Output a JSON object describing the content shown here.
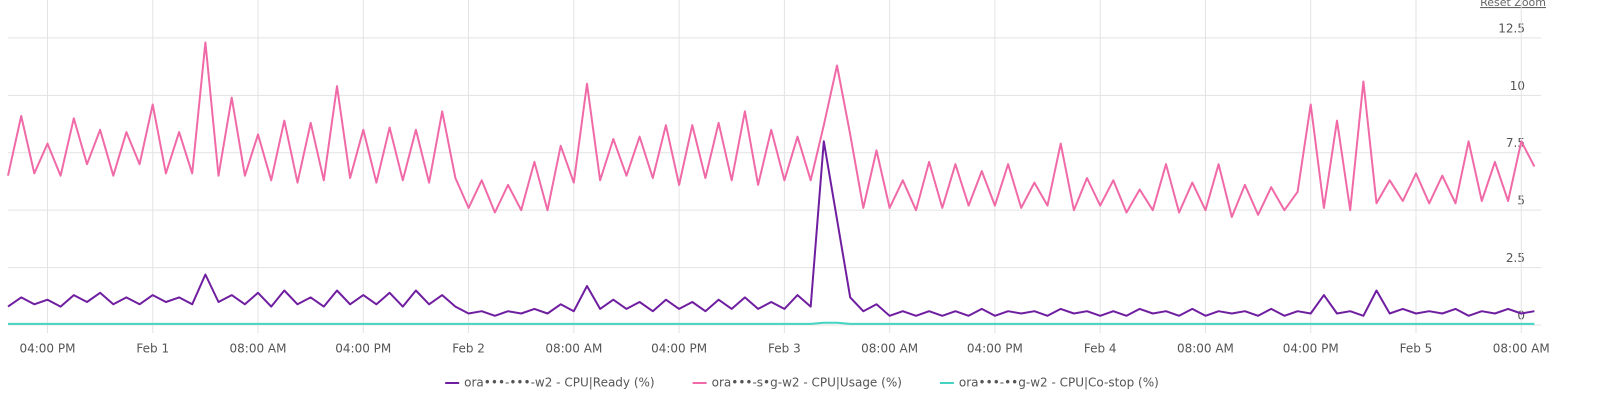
{
  "controls": {
    "reset_zoom": "Reset Zoom"
  },
  "chart_data": {
    "type": "line",
    "x": [
      0,
      1,
      2,
      3,
      4,
      5,
      6,
      7,
      8,
      9,
      10,
      11,
      12,
      13,
      14,
      15,
      16,
      17,
      18,
      19,
      20,
      21,
      22,
      23,
      24,
      25,
      26,
      27,
      28,
      29,
      30,
      31,
      32,
      33,
      34,
      35,
      36,
      37,
      38,
      39,
      40,
      41,
      42,
      43,
      44,
      45,
      46,
      47,
      48,
      49,
      50,
      51,
      52,
      53,
      54,
      55,
      56,
      57,
      58,
      59,
      60,
      61,
      62,
      63,
      64,
      65,
      66,
      67,
      68,
      69,
      70,
      71,
      72,
      73,
      74,
      75,
      76,
      77,
      78,
      79,
      80,
      81,
      82,
      83,
      84,
      85,
      86,
      87,
      88,
      89,
      90,
      91,
      92,
      93,
      94,
      95,
      96,
      97,
      98,
      99,
      100,
      101,
      102,
      103,
      104,
      105,
      106,
      107,
      108,
      109,
      110,
      111,
      112,
      113,
      114,
      115,
      116
    ],
    "xlim": [
      0,
      116.5
    ],
    "xticks": [
      {
        "value": 3,
        "label": "04:00 PM"
      },
      {
        "value": 11,
        "label": "Feb 1"
      },
      {
        "value": 19,
        "label": "08:00 AM"
      },
      {
        "value": 27,
        "label": "04:00 PM"
      },
      {
        "value": 35,
        "label": "Feb 2"
      },
      {
        "value": 43,
        "label": "08:00 AM"
      },
      {
        "value": 51,
        "label": "04:00 PM"
      },
      {
        "value": 59,
        "label": "Feb 3"
      },
      {
        "value": 67,
        "label": "08:00 AM"
      },
      {
        "value": 75,
        "label": "04:00 PM"
      },
      {
        "value": 83,
        "label": "Feb 4"
      },
      {
        "value": 91,
        "label": "08:00 AM"
      },
      {
        "value": 99,
        "label": "04:00 PM"
      },
      {
        "value": 107,
        "label": "Feb 5"
      },
      {
        "value": 115,
        "label": "08:00 AM"
      }
    ],
    "ylim": [
      0,
      14.15
    ],
    "yticks": [
      0,
      2.5,
      5,
      7.5,
      10,
      12.5
    ],
    "grid": true,
    "legend": "bottom",
    "series": [
      {
        "name": "ora•••-•••-w2 - CPU|Ready (%)",
        "color": "#6f1ea0",
        "values": [
          0.8,
          1.2,
          0.9,
          1.1,
          0.8,
          1.3,
          1.0,
          1.4,
          0.9,
          1.2,
          0.9,
          1.3,
          1.0,
          1.2,
          0.9,
          2.2,
          1.0,
          1.3,
          0.9,
          1.4,
          0.8,
          1.5,
          0.9,
          1.2,
          0.8,
          1.5,
          0.9,
          1.3,
          0.9,
          1.4,
          0.8,
          1.5,
          0.9,
          1.3,
          0.8,
          0.5,
          0.6,
          0.4,
          0.6,
          0.5,
          0.7,
          0.5,
          0.9,
          0.6,
          1.7,
          0.7,
          1.1,
          0.7,
          1.0,
          0.6,
          1.1,
          0.7,
          1.0,
          0.6,
          1.1,
          0.7,
          1.2,
          0.7,
          1.0,
          0.7,
          1.3,
          0.8,
          8.0,
          4.6,
          1.2,
          0.6,
          0.9,
          0.4,
          0.6,
          0.4,
          0.6,
          0.4,
          0.6,
          0.4,
          0.7,
          0.4,
          0.6,
          0.5,
          0.6,
          0.4,
          0.7,
          0.5,
          0.6,
          0.4,
          0.6,
          0.4,
          0.7,
          0.5,
          0.6,
          0.4,
          0.7,
          0.4,
          0.6,
          0.5,
          0.6,
          0.4,
          0.7,
          0.4,
          0.6,
          0.5,
          1.3,
          0.5,
          0.6,
          0.4,
          1.5,
          0.5,
          0.7,
          0.5,
          0.6,
          0.5,
          0.7,
          0.4,
          0.6,
          0.5,
          0.7,
          0.5,
          0.6
        ]
      },
      {
        "name": "ora•••-s•g-w2 - CPU|Usage (%)",
        "color": "#f06aa8",
        "values": [
          6.5,
          9.1,
          6.6,
          7.9,
          6.5,
          9.0,
          7.0,
          8.5,
          6.5,
          8.4,
          7.0,
          9.6,
          6.6,
          8.4,
          6.6,
          12.3,
          6.5,
          9.9,
          6.5,
          8.3,
          6.3,
          8.9,
          6.2,
          8.8,
          6.3,
          10.4,
          6.4,
          8.5,
          6.2,
          8.6,
          6.3,
          8.5,
          6.2,
          9.3,
          6.4,
          5.1,
          6.3,
          4.9,
          6.1,
          5.0,
          7.1,
          5.0,
          7.8,
          6.2,
          10.5,
          6.3,
          8.1,
          6.5,
          8.2,
          6.4,
          8.7,
          6.1,
          8.7,
          6.4,
          8.8,
          6.3,
          9.3,
          6.1,
          8.5,
          6.3,
          8.2,
          6.3,
          8.7,
          11.3,
          8.3,
          5.1,
          7.6,
          5.1,
          6.3,
          5.0,
          7.1,
          5.1,
          7.0,
          5.2,
          6.7,
          5.2,
          7.0,
          5.1,
          6.2,
          5.2,
          7.9,
          5.0,
          6.4,
          5.2,
          6.3,
          4.9,
          5.9,
          5.0,
          7.0,
          4.9,
          6.2,
          5.0,
          7.0,
          4.7,
          6.1,
          4.8,
          6.0,
          5.0,
          5.8,
          9.6,
          5.1,
          8.9,
          5.0,
          10.6,
          5.3,
          6.3,
          5.4,
          6.6,
          5.3,
          6.5,
          5.3,
          8.0,
          5.4,
          7.1,
          5.4,
          8.0,
          6.9
        ]
      },
      {
        "name": "ora•••-••g-w2 - CPU|Co-stop (%)",
        "color": "#45d3c3",
        "values": [
          0.05,
          0.05,
          0.05,
          0.05,
          0.05,
          0.05,
          0.05,
          0.05,
          0.05,
          0.05,
          0.05,
          0.05,
          0.05,
          0.05,
          0.05,
          0.05,
          0.05,
          0.05,
          0.05,
          0.05,
          0.05,
          0.05,
          0.05,
          0.05,
          0.05,
          0.05,
          0.05,
          0.05,
          0.05,
          0.05,
          0.05,
          0.05,
          0.05,
          0.05,
          0.05,
          0.05,
          0.05,
          0.05,
          0.05,
          0.05,
          0.05,
          0.05,
          0.05,
          0.05,
          0.05,
          0.05,
          0.05,
          0.05,
          0.05,
          0.05,
          0.05,
          0.05,
          0.05,
          0.05,
          0.05,
          0.05,
          0.05,
          0.05,
          0.05,
          0.05,
          0.05,
          0.05,
          0.1,
          0.1,
          0.05,
          0.05,
          0.05,
          0.05,
          0.05,
          0.05,
          0.05,
          0.05,
          0.05,
          0.05,
          0.05,
          0.05,
          0.05,
          0.05,
          0.05,
          0.05,
          0.05,
          0.05,
          0.05,
          0.05,
          0.05,
          0.05,
          0.05,
          0.05,
          0.05,
          0.05,
          0.05,
          0.05,
          0.05,
          0.05,
          0.05,
          0.05,
          0.05,
          0.05,
          0.05,
          0.05,
          0.05,
          0.05,
          0.05,
          0.05,
          0.05,
          0.05,
          0.05,
          0.05,
          0.05,
          0.05,
          0.05,
          0.05,
          0.05,
          0.05,
          0.05,
          0.05,
          0.05
        ]
      }
    ]
  }
}
